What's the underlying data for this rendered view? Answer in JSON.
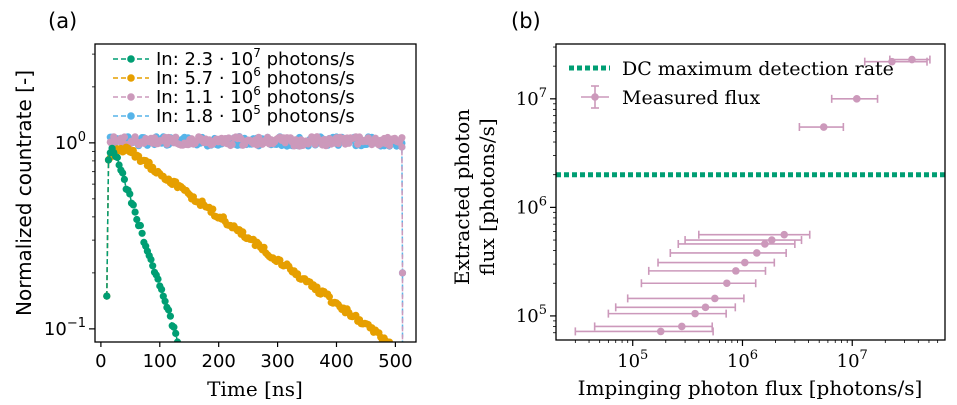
{
  "chart_data": [
    {
      "panel_label": "(a)",
      "type": "line",
      "xlabel": "Time [ns]",
      "ylabel": "Normalized countrate [-]",
      "xlim": [
        -10,
        535
      ],
      "ylim": [
        0.085,
        3.4
      ],
      "yscale": "log",
      "x_ticks": [
        0,
        100,
        200,
        300,
        400,
        500
      ],
      "x_tick_labels": [
        "0",
        "100",
        "200",
        "300",
        "400",
        "500"
      ],
      "y_ticks": [
        0.1,
        1
      ],
      "y_tick_labels": [
        {
          "base": "10",
          "exp": "−1"
        },
        {
          "base": "10",
          "exp": "0"
        }
      ],
      "legend_placement": "top-center",
      "series": [
        {
          "name": "In: 2.3 · 10",
          "name_exp": "7",
          "name_unit": " photons/s",
          "color": "#009E73",
          "x_start": 12,
          "decay_tau_ns": 46
        },
        {
          "name": "In: 5.7 · 10",
          "name_exp": "6",
          "name_unit": " photons/s",
          "color": "#E69F00",
          "x_start": 12,
          "decay_tau_ns": 185
        },
        {
          "name": "In: 1.1 · 10",
          "name_exp": "6",
          "name_unit": " photons/s",
          "color": "#CC99BB",
          "x_start": 12,
          "decay_tau_ns": 0
        },
        {
          "name": "In: 1.8 · 10",
          "name_exp": "5",
          "name_unit": " photons/s",
          "color": "#56B4E9",
          "x_start": 12,
          "decay_tau_ns": 0
        }
      ]
    },
    {
      "panel_label": "(b)",
      "type": "scatter",
      "xlabel": "Impinging photon flux [photons/s]",
      "ylabel_line1": "Extracted photon",
      "ylabel_line2": "flux [photons/s]",
      "xscale": "log",
      "yscale": "log",
      "xlim": [
        20000,
        70000000
      ],
      "ylim": [
        60000,
        32000000
      ],
      "x_ticks": [
        100000,
        1000000,
        10000000
      ],
      "x_tick_labels": [
        {
          "base": "10",
          "exp": "5"
        },
        {
          "base": "10",
          "exp": "6"
        },
        {
          "base": "10",
          "exp": "7"
        }
      ],
      "y_ticks": [
        100000,
        1000000,
        10000000
      ],
      "y_tick_labels": [
        {
          "base": "10",
          "exp": "5"
        },
        {
          "base": "10",
          "exp": "6"
        },
        {
          "base": "10",
          "exp": "7"
        }
      ],
      "legend_placement": "top-left",
      "dc_max_rate": {
        "name": "DC maximum detection rate",
        "value": 2000000,
        "color": "#009E73"
      },
      "measured": {
        "name": "Measured flux",
        "color": "#CC99BB",
        "points": [
          {
            "x": 180000,
            "y": 72000,
            "xerr_low": 150000,
            "xerr_high": 360000
          },
          {
            "x": 280000,
            "y": 80000,
            "xerr_low": 235000,
            "xerr_high": 250000
          },
          {
            "x": 370000,
            "y": 105000,
            "xerr_low": 310000,
            "xerr_high": 340000
          },
          {
            "x": 460000,
            "y": 120000,
            "xerr_low": 390000,
            "xerr_high": 400000
          },
          {
            "x": 560000,
            "y": 145000,
            "xerr_low": 470000,
            "xerr_high": 470000
          },
          {
            "x": 720000,
            "y": 200000,
            "xerr_low": 600000,
            "xerr_high": 600000
          },
          {
            "x": 870000,
            "y": 260000,
            "xerr_low": 730000,
            "xerr_high": 750000
          },
          {
            "x": 1050000,
            "y": 310000,
            "xerr_low": 880000,
            "xerr_high": 900000
          },
          {
            "x": 1350000,
            "y": 380000,
            "xerr_low": 1130000,
            "xerr_high": 1150000
          },
          {
            "x": 1600000,
            "y": 460000,
            "xerr_low": 1340000,
            "xerr_high": 1400000
          },
          {
            "x": 1850000,
            "y": 500000,
            "xerr_low": 1550000,
            "xerr_high": 1600000
          },
          {
            "x": 2400000,
            "y": 560000,
            "xerr_low": 2000000,
            "xerr_high": 1700000
          },
          {
            "x": 5500000,
            "y": 5500000,
            "xerr_low": 2200000,
            "xerr_high": 2800000
          },
          {
            "x": 11000000,
            "y": 10000000,
            "xerr_low": 4500000,
            "xerr_high": 6000000
          },
          {
            "x": 23000000,
            "y": 22000000,
            "xerr_low": 10000000,
            "xerr_high": 25000000
          },
          {
            "x": 35000000,
            "y": 23000000,
            "xerr_low": 13000000,
            "xerr_high": 16000000
          }
        ]
      }
    }
  ]
}
